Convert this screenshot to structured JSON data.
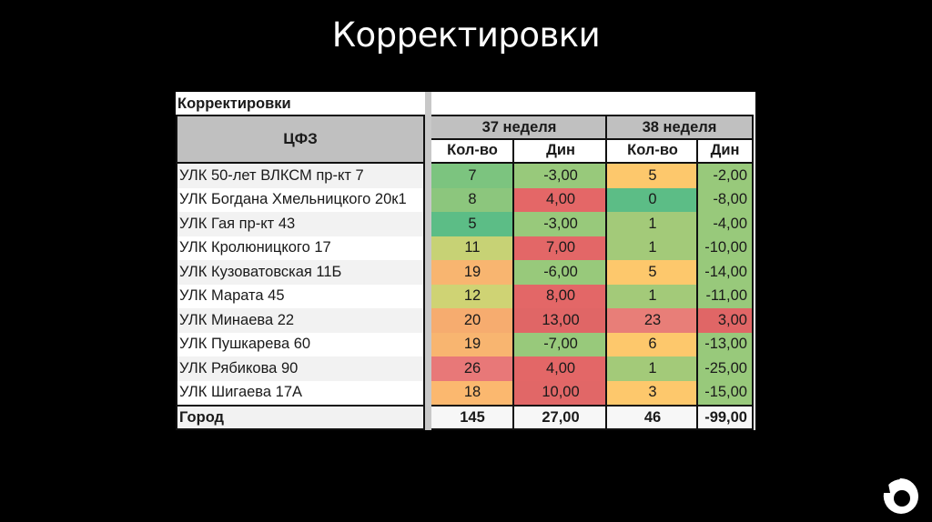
{
  "slide": {
    "title": "Корректировки"
  },
  "table": {
    "caption": "Корректировки",
    "row_header_label": "ЦФЗ",
    "week_groups": [
      {
        "label": "37 неделя",
        "cols": [
          "Кол-во",
          "Дин"
        ]
      },
      {
        "label": "38 неделя",
        "cols": [
          "Кол-во",
          "Дин"
        ]
      }
    ],
    "rows": [
      {
        "name": "УЛК 50-лет ВЛКСМ пр-кт 7",
        "w37_qty": "7",
        "w37_dyn": "-3,00",
        "w38_qty": "5",
        "w38_dyn": "-2,00",
        "colors": [
          "#7cc47f",
          "#98c97b",
          "#fdc86c",
          "#98c97b"
        ]
      },
      {
        "name": "УЛК Богдана Хмельницкого 20к1",
        "w37_qty": "8",
        "w37_dyn": "4,00",
        "w38_qty": "0",
        "w38_dyn": "-8,00",
        "colors": [
          "#8cc67d",
          "#e46767",
          "#5cbd86",
          "#98c97b"
        ]
      },
      {
        "name": "УЛК Гая пр-кт 43",
        "w37_qty": "5",
        "w37_dyn": "-3,00",
        "w38_qty": "1",
        "w38_dyn": "-4,00",
        "colors": [
          "#5cbd86",
          "#98c97b",
          "#a3ca79",
          "#98c97b"
        ]
      },
      {
        "name": "УЛК Кролюницкого 17",
        "w37_qty": "11",
        "w37_dyn": "7,00",
        "w38_qty": "1",
        "w38_dyn": "-10,00",
        "colors": [
          "#c7d275",
          "#e36767",
          "#a3ca79",
          "#98c97b"
        ]
      },
      {
        "name": "УЛК Кузоватовская 11Б",
        "w37_qty": "19",
        "w37_dyn": "-6,00",
        "w38_qty": "5",
        "w38_dyn": "-14,00",
        "colors": [
          "#f8b570",
          "#98c97b",
          "#fdc86c",
          "#98c97b"
        ]
      },
      {
        "name": "УЛК Марата 45",
        "w37_qty": "12",
        "w37_dyn": "8,00",
        "w38_qty": "1",
        "w38_dyn": "-11,00",
        "colors": [
          "#cfd374",
          "#e36767",
          "#a3ca79",
          "#98c97b"
        ]
      },
      {
        "name": "УЛК Минаева 22",
        "w37_qty": "20",
        "w37_dyn": "13,00",
        "w38_qty": "23",
        "w38_dyn": "3,00",
        "colors": [
          "#f6ac6f",
          "#e06666",
          "#e87e78",
          "#e06666"
        ]
      },
      {
        "name": "УЛК Пушкарева 60",
        "w37_qty": "19",
        "w37_dyn": "-7,00",
        "w38_qty": "6",
        "w38_dyn": "-13,00",
        "colors": [
          "#f8b570",
          "#98c97b",
          "#fdc86c",
          "#98c97b"
        ]
      },
      {
        "name": "УЛК Рябикова 90",
        "w37_qty": "26",
        "w37_dyn": "4,00",
        "w38_qty": "1",
        "w38_dyn": "-25,00",
        "colors": [
          "#e87878",
          "#e36767",
          "#a3ca79",
          "#98c97b"
        ]
      },
      {
        "name": "УЛК Шигаева 17А",
        "w37_qty": "18",
        "w37_dyn": "10,00",
        "w38_qty": "3",
        "w38_dyn": "-15,00",
        "colors": [
          "#fbb86f",
          "#e16767",
          "#fdc86c",
          "#98c97b"
        ]
      }
    ],
    "total": {
      "name": "Город",
      "w37_qty": "145",
      "w37_dyn": "27,00",
      "w38_qty": "46",
      "w38_dyn": "-99,00"
    }
  },
  "logo": {
    "icon": "ring-logo-icon"
  }
}
